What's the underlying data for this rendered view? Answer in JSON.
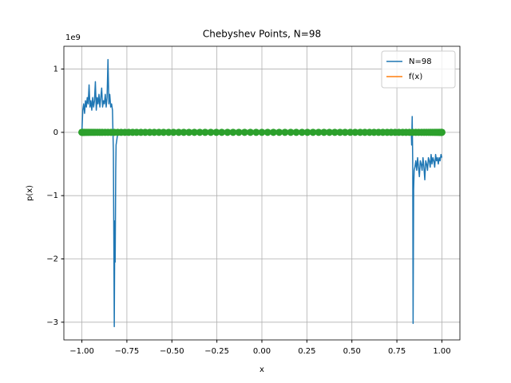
{
  "chart_data": {
    "type": "line",
    "title": "Chebyshev Points, N=98",
    "xlabel": "x",
    "ylabel": "p(x)",
    "y_offset_label": "1e9",
    "xlim": [
      -1.1,
      1.1
    ],
    "ylim": [
      -3.28,
      1.36
    ],
    "grid": true,
    "legend": "upper right",
    "xticks": [
      {
        "value": -1,
        "label": "−1.00"
      },
      {
        "value": -0.75,
        "label": "−0.75"
      },
      {
        "value": -0.5,
        "label": "−0.50"
      },
      {
        "value": -0.25,
        "label": "−0.25"
      },
      {
        "value": 0,
        "label": "0.00"
      },
      {
        "value": 0.25,
        "label": "0.25"
      },
      {
        "value": 0.5,
        "label": "0.50"
      },
      {
        "value": 0.75,
        "label": "0.75"
      },
      {
        "value": 1,
        "label": "1.00"
      }
    ],
    "yticks": [
      {
        "value": -3,
        "label": "−3"
      },
      {
        "value": -2,
        "label": "−2"
      },
      {
        "value": -1,
        "label": "−1"
      },
      0,
      1
    ],
    "series": [
      {
        "name": "N=98",
        "color": "#1f77b4",
        "x": [
          -1.0,
          -0.995,
          -0.99,
          -0.985,
          -0.98,
          -0.975,
          -0.97,
          -0.965,
          -0.96,
          -0.955,
          -0.95,
          -0.945,
          -0.94,
          -0.935,
          -0.93,
          -0.925,
          -0.92,
          -0.915,
          -0.91,
          -0.905,
          -0.9,
          -0.895,
          -0.89,
          -0.885,
          -0.88,
          -0.875,
          -0.87,
          -0.865,
          -0.86,
          -0.855,
          -0.85,
          -0.845,
          -0.84,
          -0.835,
          -0.83,
          -0.825,
          -0.82,
          -0.817,
          -0.815,
          -0.812,
          -0.81,
          -0.8,
          0.83,
          0.832,
          0.835,
          0.838,
          0.84,
          0.843,
          0.846,
          0.85,
          0.855,
          0.86,
          0.865,
          0.87,
          0.875,
          0.88,
          0.885,
          0.89,
          0.895,
          0.9,
          0.905,
          0.91,
          0.915,
          0.92,
          0.925,
          0.93,
          0.935,
          0.94,
          0.945,
          0.95,
          0.955,
          0.96,
          0.965,
          0.97,
          0.975,
          0.98,
          0.985,
          0.99,
          0.995,
          1.0
        ],
        "values": [
          0,
          0.35,
          0.45,
          0.3,
          0.5,
          0.4,
          0.55,
          0.45,
          0.75,
          0.4,
          0.5,
          0.35,
          0.55,
          0.4,
          0.5,
          0.8,
          0.35,
          0.55,
          0.45,
          0.6,
          0.4,
          0.55,
          0.7,
          0.4,
          0.5,
          0.45,
          0.6,
          0.4,
          0.55,
          1.15,
          0.45,
          0.6,
          0.4,
          0.45,
          0.35,
          -0.3,
          -3.07,
          -1.4,
          -2.05,
          -0.6,
          -0.2,
          0,
          0,
          -0.2,
          0.25,
          -0.5,
          -3.02,
          -0.9,
          -0.6,
          -0.55,
          -0.45,
          -0.6,
          -0.4,
          -0.55,
          -0.7,
          -0.45,
          -0.5,
          -0.6,
          -0.4,
          -0.55,
          -0.75,
          -0.45,
          -0.5,
          -0.6,
          -0.4,
          -0.45,
          -0.55,
          -0.35,
          -0.5,
          -0.4,
          -0.45,
          -0.55,
          -0.35,
          -0.45,
          -0.4,
          -0.5,
          -0.4,
          -0.45,
          -0.35,
          -0.4
        ]
      },
      {
        "name": "f(x)",
        "color": "#ff7f0e",
        "x": [
          -1,
          0,
          1
        ],
        "values": [
          0,
          0,
          0
        ]
      },
      {
        "color": "#2ca02c",
        "marker": "o",
        "x": [
          -1,
          -0.999,
          -0.998,
          -0.995,
          -0.992,
          -0.987,
          -0.982,
          -0.975,
          -0.967,
          -0.959,
          -0.949,
          -0.938,
          -0.927,
          -0.914,
          -0.901,
          -0.887,
          -0.871,
          -0.855,
          -0.838,
          -0.82,
          -0.801,
          -0.782,
          -0.761,
          -0.74,
          -0.718,
          -0.696,
          -0.672,
          -0.648,
          -0.623,
          -0.598,
          -0.572,
          -0.546,
          -0.518,
          -0.491,
          -0.462,
          -0.434,
          -0.405,
          -0.375,
          -0.345,
          -0.315,
          -0.284,
          -0.253,
          -0.223,
          -0.191,
          -0.16,
          -0.128,
          -0.096,
          -0.064,
          -0.032,
          0,
          0.032,
          0.064,
          0.096,
          0.128,
          0.16,
          0.191,
          0.223,
          0.253,
          0.284,
          0.315,
          0.345,
          0.375,
          0.405,
          0.434,
          0.462,
          0.491,
          0.518,
          0.546,
          0.572,
          0.598,
          0.623,
          0.648,
          0.672,
          0.696,
          0.718,
          0.74,
          0.761,
          0.782,
          0.801,
          0.82,
          0.838,
          0.855,
          0.871,
          0.887,
          0.901,
          0.914,
          0.927,
          0.938,
          0.949,
          0.959,
          0.967,
          0.975,
          0.982,
          0.987,
          0.992,
          0.995,
          0.998,
          0.999,
          1
        ],
        "values": [
          0,
          0,
          0,
          0,
          0,
          0,
          0,
          0,
          0,
          0,
          0,
          0,
          0,
          0,
          0,
          0,
          0,
          0,
          0,
          0,
          0,
          0,
          0,
          0,
          0,
          0,
          0,
          0,
          0,
          0,
          0,
          0,
          0,
          0,
          0,
          0,
          0,
          0,
          0,
          0,
          0,
          0,
          0,
          0,
          0,
          0,
          0,
          0,
          0,
          0,
          0,
          0,
          0,
          0,
          0,
          0,
          0,
          0,
          0,
          0,
          0,
          0,
          0,
          0,
          0,
          0,
          0,
          0,
          0,
          0,
          0,
          0,
          0,
          0,
          0,
          0,
          0,
          0,
          0,
          0,
          0,
          0,
          0,
          0,
          0,
          0,
          0,
          0,
          0,
          0,
          0,
          0,
          0,
          0,
          0,
          0,
          0,
          0,
          0
        ]
      }
    ]
  }
}
